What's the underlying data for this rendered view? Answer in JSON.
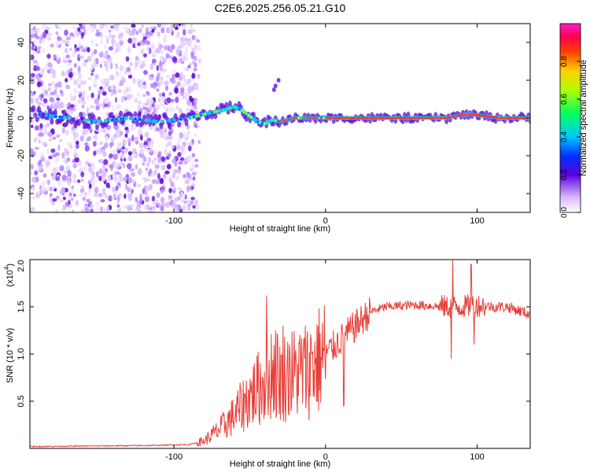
{
  "title": "C2E6.2025.256.05.21.G10",
  "chart_data": [
    {
      "type": "heatmap",
      "xlabel": "Height of straight line (km)",
      "ylabel": "Frequency (Hz)",
      "xlim": [
        -195,
        135
      ],
      "ylim": [
        -50,
        50
      ],
      "xticks": [
        -100,
        0,
        100
      ],
      "yticks": [
        -40,
        -20,
        0,
        20,
        40
      ],
      "ridge": [
        [
          -190,
          2
        ],
        [
          -170,
          0
        ],
        [
          -150,
          -2
        ],
        [
          -130,
          0
        ],
        [
          -110,
          -2
        ],
        [
          -90,
          0
        ],
        [
          -75,
          3
        ],
        [
          -68,
          4
        ],
        [
          -60,
          6
        ],
        [
          -55,
          4
        ],
        [
          -50,
          1
        ],
        [
          -45,
          -2
        ],
        [
          -40,
          -3
        ],
        [
          -35,
          -1
        ],
        [
          -30,
          -2
        ],
        [
          -20,
          0
        ],
        [
          0,
          0
        ],
        [
          20,
          0
        ],
        [
          60,
          0
        ],
        [
          80,
          0
        ],
        [
          85,
          1
        ],
        [
          95,
          2
        ],
        [
          105,
          1
        ],
        [
          115,
          0
        ],
        [
          135,
          0
        ]
      ],
      "colorbar": {
        "label": "Normalized spectral amplitude",
        "range": [
          0,
          1
        ],
        "ticks": [
          0.0,
          0.2,
          0.4,
          0.6,
          0.8
        ],
        "tick_labels": [
          "0.0",
          "0.2",
          "0.4",
          "0.6",
          "0.8"
        ]
      }
    },
    {
      "type": "line",
      "xlabel": "Height of straight line (km)",
      "ylabel": "SNR (10 * v/v)",
      "multiplier": "(x10",
      "multiplier_exp": "4",
      "multiplier_close": ")",
      "xlim": [
        -195,
        135
      ],
      "ylim": [
        0,
        2.0
      ],
      "xticks": [
        -100,
        0,
        100
      ],
      "yticks": [
        0.5,
        1.0,
        1.5,
        2.0
      ],
      "ytick_labels": [
        "0.5",
        "1.0",
        "1.5",
        "2.0"
      ],
      "color": "#e8403a",
      "envelope": [
        [
          -195,
          0.02
        ],
        [
          -120,
          0.03
        ],
        [
          -90,
          0.04
        ],
        [
          -80,
          0.08
        ],
        [
          -70,
          0.2
        ],
        [
          -60,
          0.35
        ],
        [
          -50,
          0.55
        ],
        [
          -40,
          0.7
        ],
        [
          -35,
          0.85
        ],
        [
          -30,
          0.75
        ],
        [
          -20,
          0.8
        ],
        [
          -10,
          0.85
        ],
        [
          0,
          1.0
        ],
        [
          10,
          1.15
        ],
        [
          20,
          1.3
        ],
        [
          30,
          1.45
        ],
        [
          40,
          1.5
        ],
        [
          60,
          1.52
        ],
        [
          80,
          1.5
        ],
        [
          90,
          1.5
        ],
        [
          100,
          1.52
        ],
        [
          110,
          1.5
        ],
        [
          120,
          1.5
        ],
        [
          135,
          1.42
        ]
      ],
      "annotated_spikes": [
        [
          -39,
          1.62
        ],
        [
          -38,
          0.35
        ],
        [
          -33,
          1.25
        ],
        [
          -28,
          1.3
        ],
        [
          -24,
          1.1
        ],
        [
          -20,
          0.95
        ],
        [
          -14,
          1.17
        ],
        [
          -9,
          1.0
        ],
        [
          12,
          0.45
        ],
        [
          84,
          2.0
        ],
        [
          83,
          0.95
        ],
        [
          96,
          1.95
        ],
        [
          98,
          1.1
        ]
      ]
    }
  ]
}
